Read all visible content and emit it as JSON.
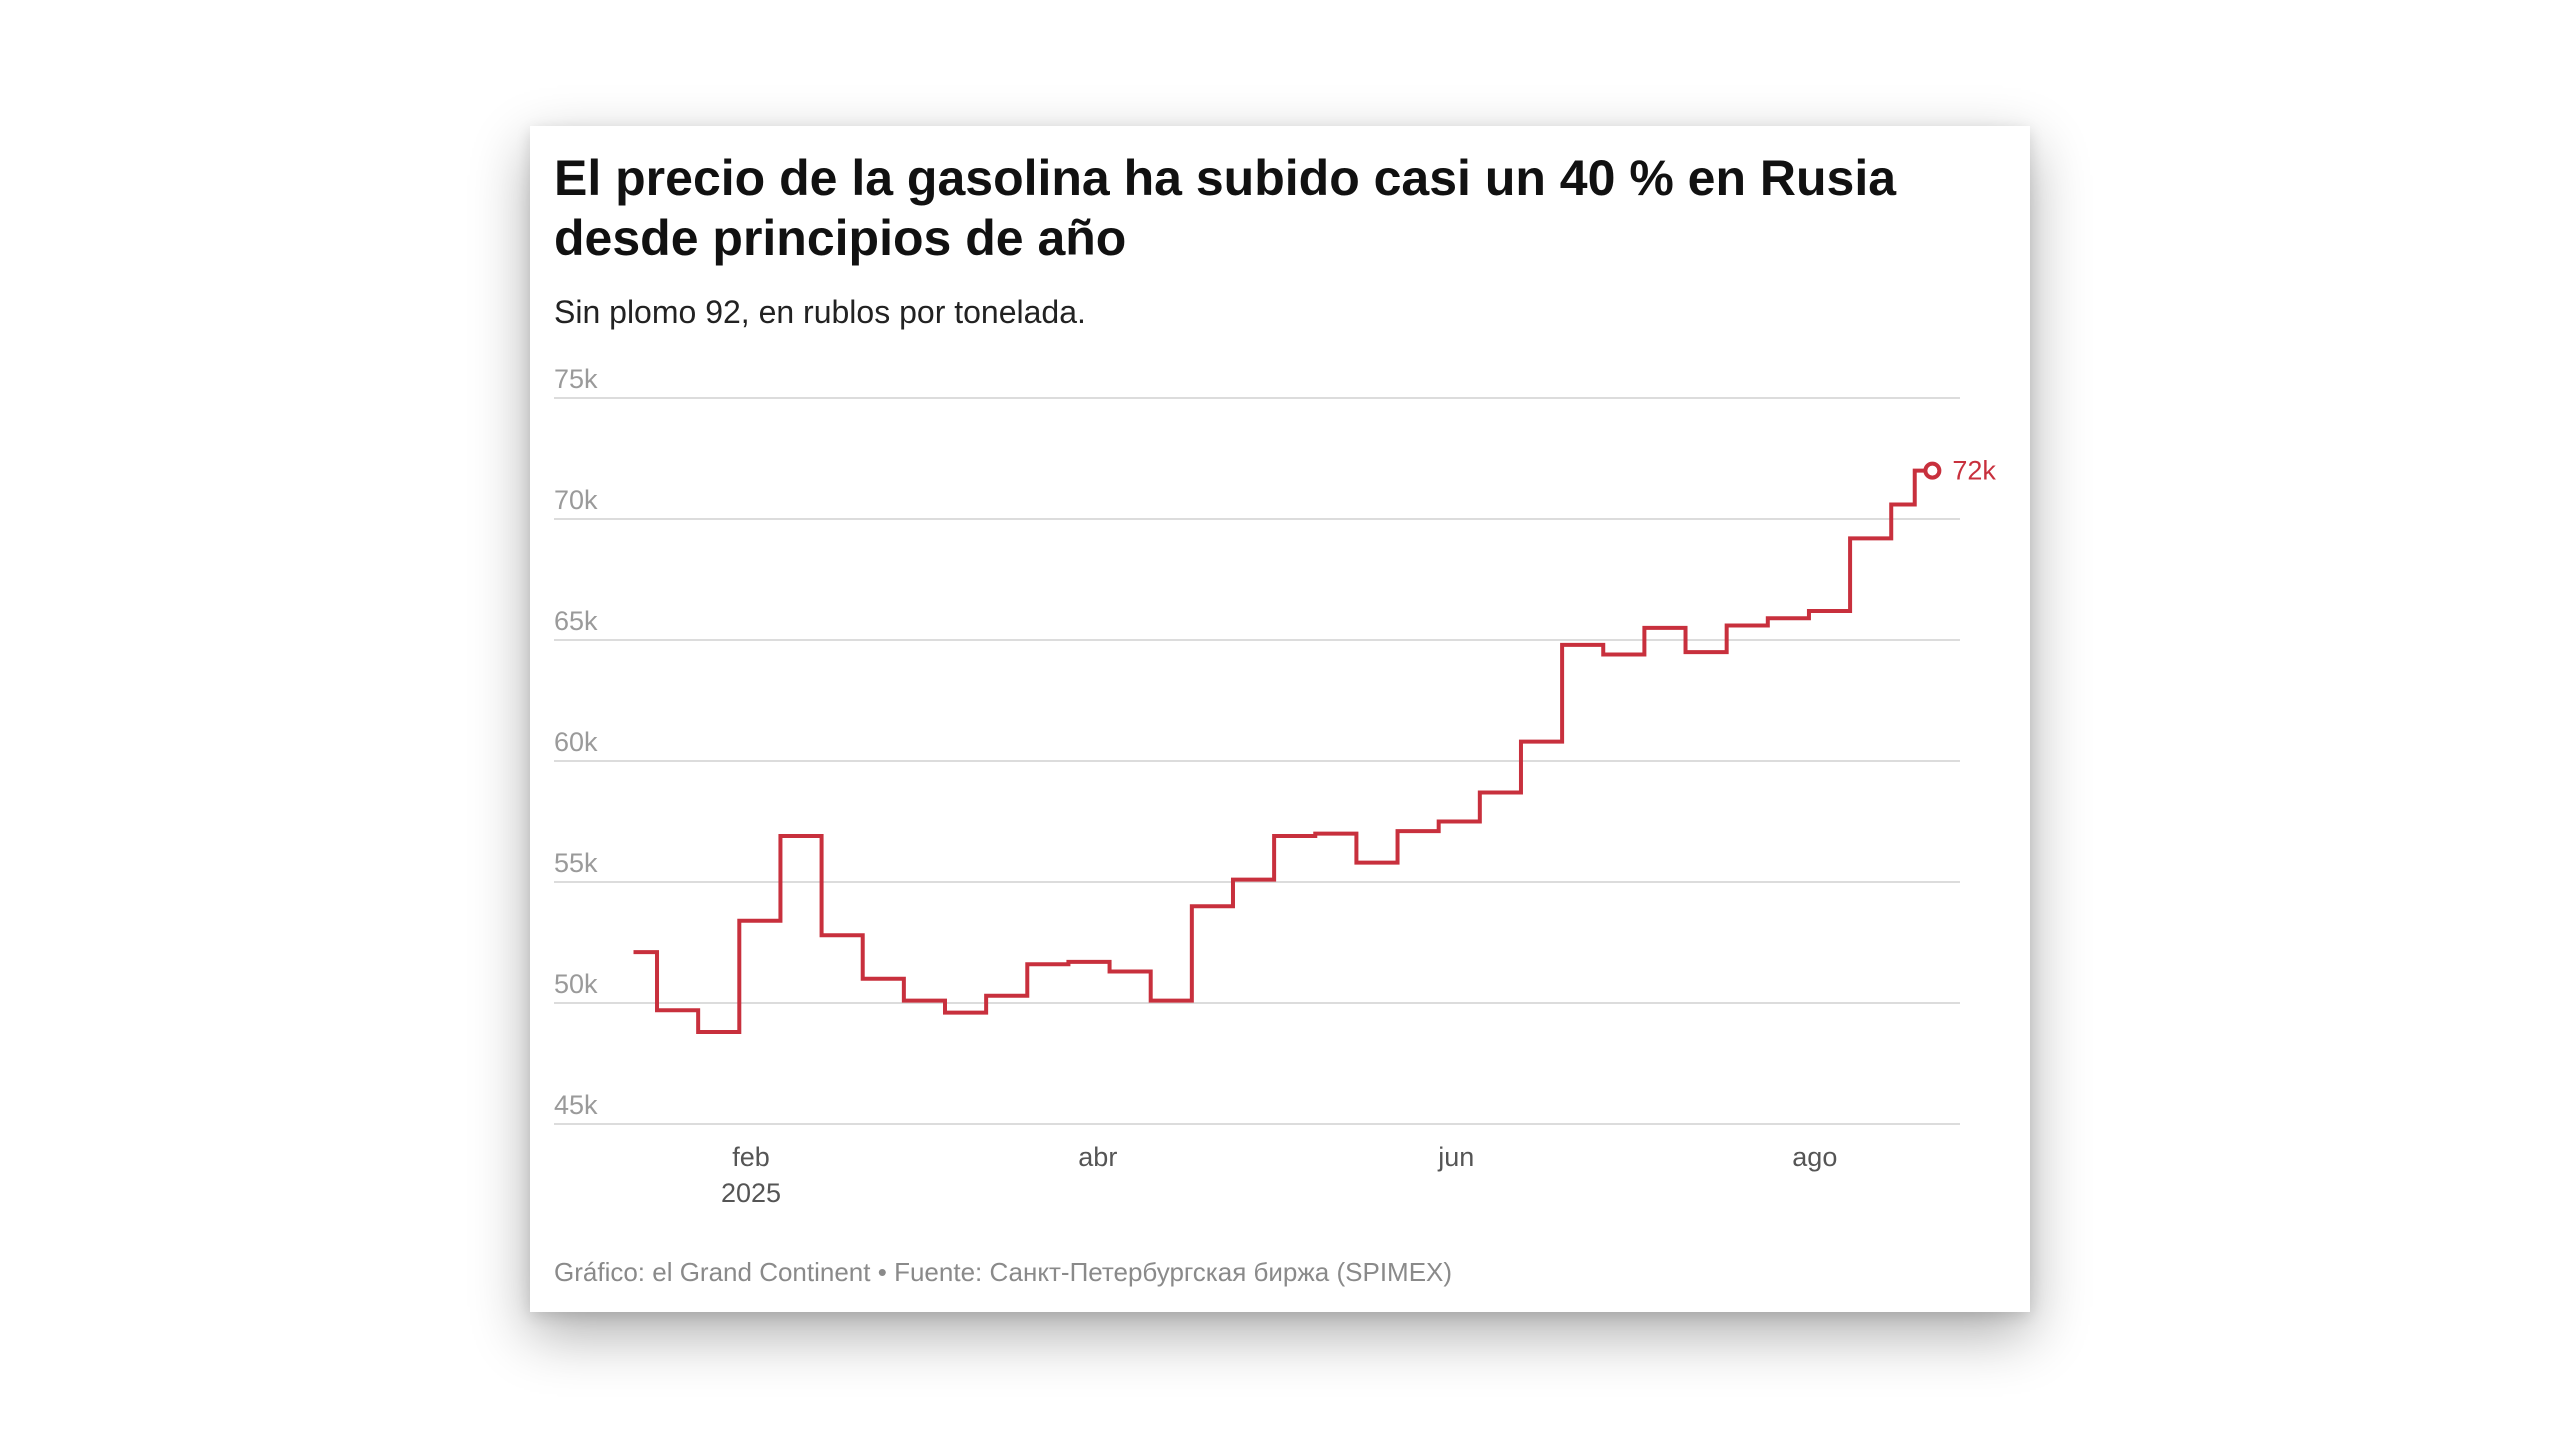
{
  "title": "El precio de la gasolina ha subido casi un 40 % en Rusia desde principios de año",
  "subtitle": "Sin plomo 92, en rublos por tonelada.",
  "footer": {
    "graphic_label": "Gráfico: el Grand Continent",
    "separator": "•",
    "source_label": "Fuente: Санкт-Петербургская биржа (SPIMEX)"
  },
  "colors": {
    "line": "#c8303d",
    "grid": "#dcdcdc",
    "axis_text": "#9a9a9a"
  },
  "chart_data": {
    "type": "line",
    "interpolation": "step-after",
    "y_ticks": [
      {
        "value": 45000,
        "label": "45k"
      },
      {
        "value": 50000,
        "label": "50k"
      },
      {
        "value": 55000,
        "label": "55k"
      },
      {
        "value": 60000,
        "label": "60k"
      },
      {
        "value": 65000,
        "label": "65k"
      },
      {
        "value": 70000,
        "label": "70k"
      },
      {
        "value": 75000,
        "label": "75k"
      }
    ],
    "ylim": [
      45000,
      75000
    ],
    "x_ticks": [
      {
        "date": "2025-02-01",
        "label": "feb",
        "sublabel": "2025"
      },
      {
        "date": "2025-04-01",
        "label": "abr",
        "sublabel": ""
      },
      {
        "date": "2025-06-01",
        "label": "jun",
        "sublabel": ""
      },
      {
        "date": "2025-08-01",
        "label": "ago",
        "sublabel": ""
      }
    ],
    "xlim": [
      "2025-01-08",
      "2025-08-24"
    ],
    "grid": true,
    "end_label": "72k",
    "series": [
      {
        "points": [
          {
            "date": "2025-01-12",
            "value": 52100
          },
          {
            "date": "2025-01-16",
            "value": 49700
          },
          {
            "date": "2025-01-23",
            "value": 48800
          },
          {
            "date": "2025-01-30",
            "value": 53400
          },
          {
            "date": "2025-02-06",
            "value": 56900
          },
          {
            "date": "2025-02-13",
            "value": 52800
          },
          {
            "date": "2025-02-20",
            "value": 51000
          },
          {
            "date": "2025-02-27",
            "value": 50100
          },
          {
            "date": "2025-03-06",
            "value": 49600
          },
          {
            "date": "2025-03-13",
            "value": 50300
          },
          {
            "date": "2025-03-20",
            "value": 51600
          },
          {
            "date": "2025-03-27",
            "value": 51700
          },
          {
            "date": "2025-04-03",
            "value": 51300
          },
          {
            "date": "2025-04-10",
            "value": 50100
          },
          {
            "date": "2025-04-17",
            "value": 54000
          },
          {
            "date": "2025-04-24",
            "value": 55100
          },
          {
            "date": "2025-05-01",
            "value": 56900
          },
          {
            "date": "2025-05-08",
            "value": 57000
          },
          {
            "date": "2025-05-15",
            "value": 55800
          },
          {
            "date": "2025-05-22",
            "value": 57100
          },
          {
            "date": "2025-05-29",
            "value": 57500
          },
          {
            "date": "2025-06-05",
            "value": 58700
          },
          {
            "date": "2025-06-12",
            "value": 60800
          },
          {
            "date": "2025-06-19",
            "value": 64800
          },
          {
            "date": "2025-06-26",
            "value": 64400
          },
          {
            "date": "2025-07-03",
            "value": 65500
          },
          {
            "date": "2025-07-10",
            "value": 64500
          },
          {
            "date": "2025-07-17",
            "value": 65600
          },
          {
            "date": "2025-07-24",
            "value": 65900
          },
          {
            "date": "2025-07-31",
            "value": 66200
          },
          {
            "date": "2025-08-07",
            "value": 69200
          },
          {
            "date": "2025-08-14",
            "value": 70600
          },
          {
            "date": "2025-08-18",
            "value": 72000
          },
          {
            "date": "2025-08-21",
            "value": 72000
          }
        ]
      }
    ]
  }
}
